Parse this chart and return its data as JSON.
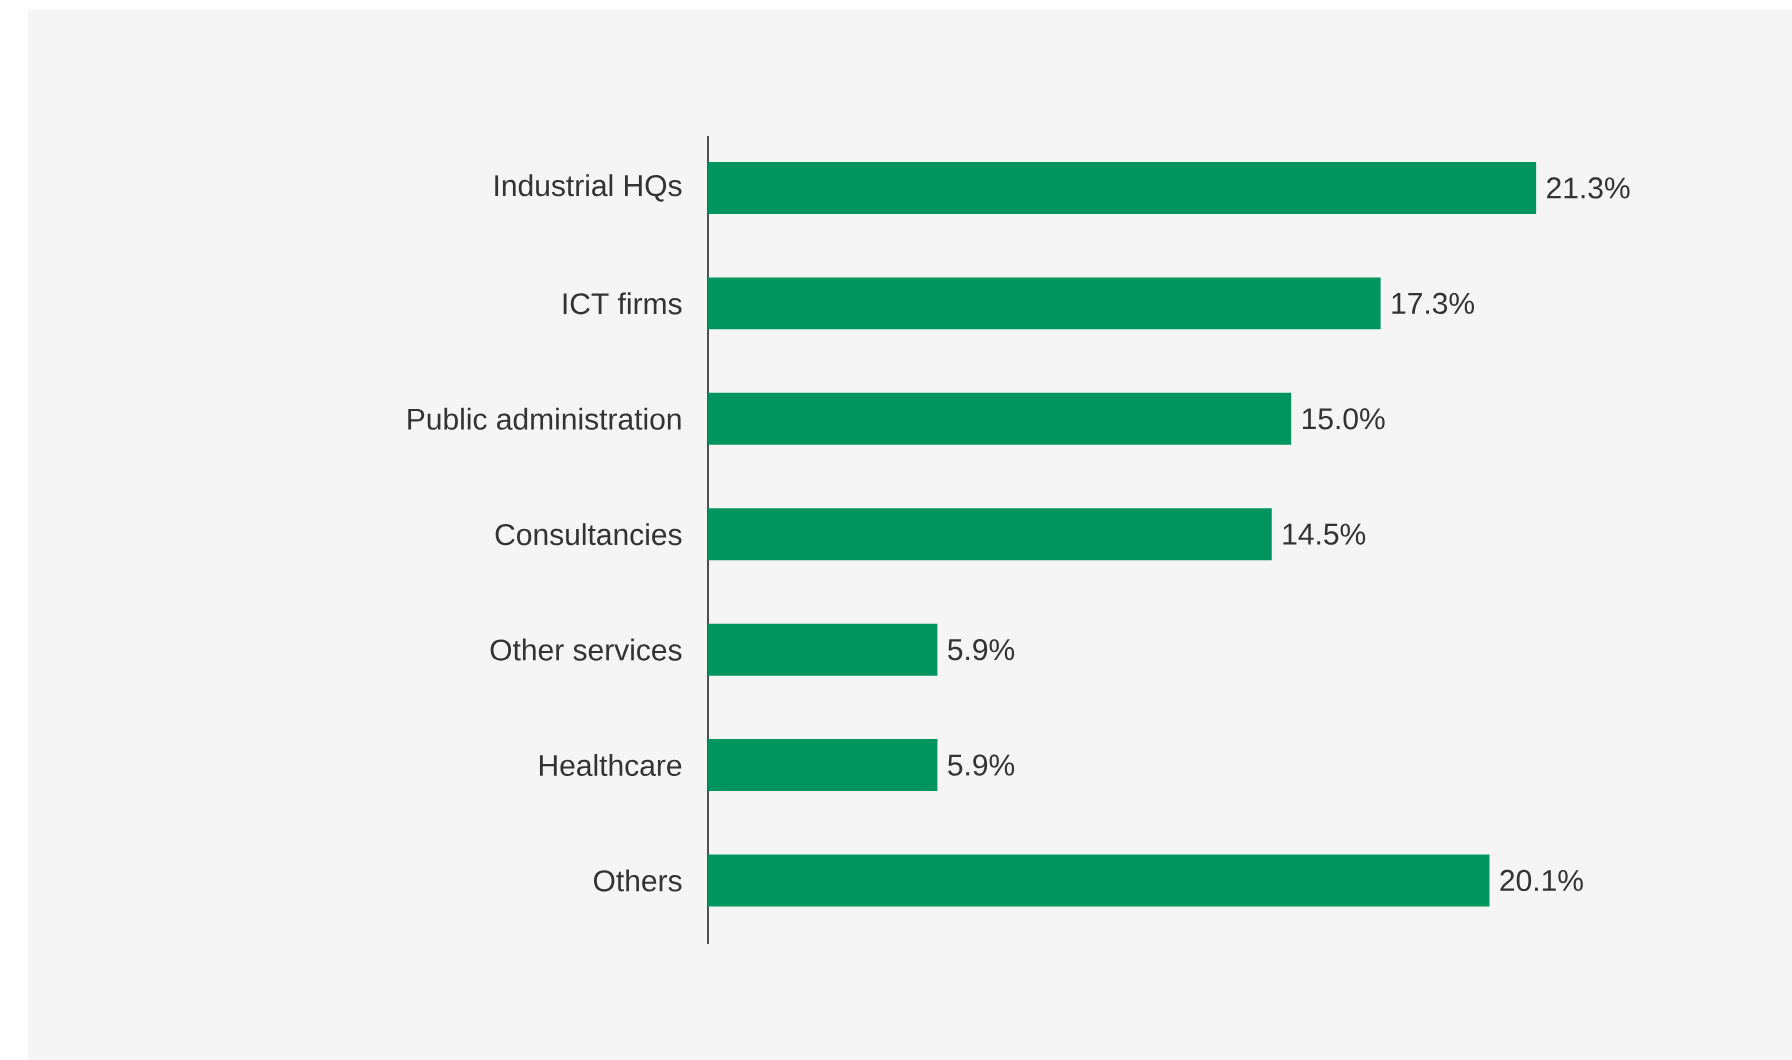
{
  "chart_data": {
    "type": "bar",
    "orientation": "horizontal",
    "categories": [
      "Industrial HQs",
      "ICT firms",
      "Public administration",
      "Consultancies",
      "Other services",
      "Healthcare",
      "Others"
    ],
    "values": [
      21.3,
      17.3,
      15.0,
      14.5,
      5.9,
      5.9,
      20.1
    ],
    "value_labels": [
      "21.3%",
      "17.3%",
      "15.0%",
      "14.5%",
      "5.9%",
      "5.9%",
      "20.1%"
    ],
    "color": "#009460"
  }
}
